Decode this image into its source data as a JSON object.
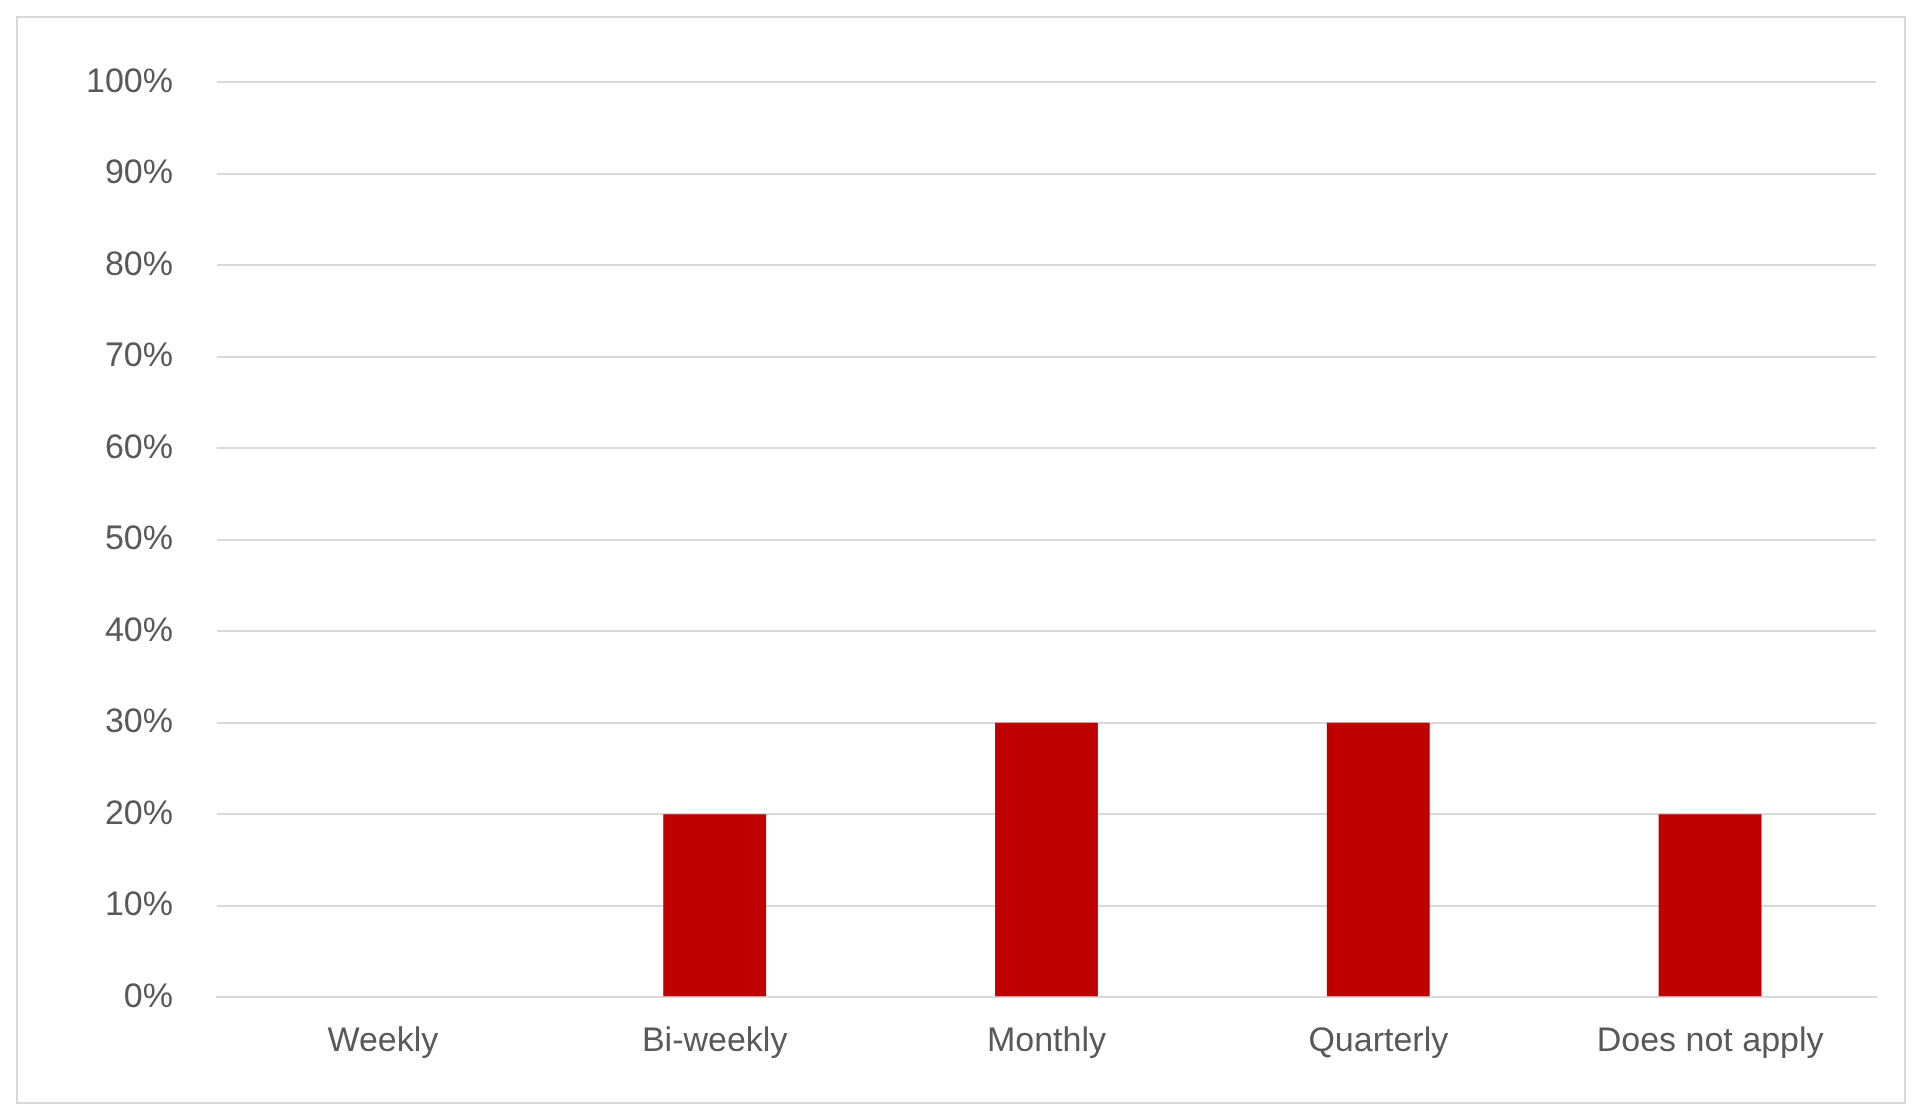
{
  "chart_data": {
    "type": "bar",
    "categories": [
      "Weekly",
      "Bi-weekly",
      "Monthly",
      "Quarterly",
      "Does not apply"
    ],
    "values": [
      0,
      20,
      30,
      30,
      20
    ],
    "color": "#c00000",
    "ylim": [
      0,
      100
    ],
    "yticks": [
      {
        "value": 0,
        "label": "0%"
      },
      {
        "value": 10,
        "label": "10%"
      },
      {
        "value": 20,
        "label": "20%"
      },
      {
        "value": 30,
        "label": "30%"
      },
      {
        "value": 40,
        "label": "40%"
      },
      {
        "value": 50,
        "label": "50%"
      },
      {
        "value": 60,
        "label": "60%"
      },
      {
        "value": 70,
        "label": "70%"
      },
      {
        "value": 80,
        "label": "80%"
      },
      {
        "value": 90,
        "label": "90%"
      },
      {
        "value": 100,
        "label": "100%"
      }
    ],
    "grid": "y"
  }
}
